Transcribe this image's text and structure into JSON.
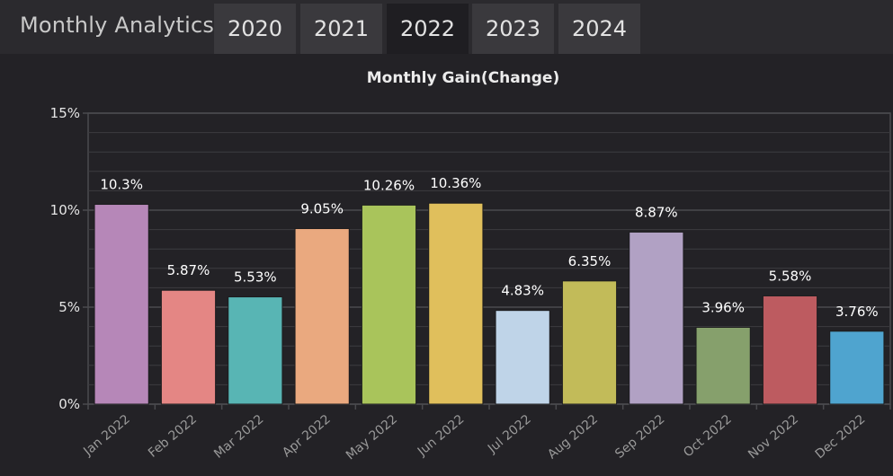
{
  "header": {
    "title": "Monthly Analytics",
    "tabs": [
      {
        "label": "2020",
        "active": false
      },
      {
        "label": "2021",
        "active": false
      },
      {
        "label": "2022",
        "active": true
      },
      {
        "label": "2023",
        "active": false
      },
      {
        "label": "2024",
        "active": false
      }
    ]
  },
  "chart_data": {
    "type": "bar",
    "title": "Monthly Gain(Change)",
    "xlabel": "",
    "ylabel": "",
    "categories": [
      "Jan 2022",
      "Feb 2022",
      "Mar 2022",
      "Apr 2022",
      "May 2022",
      "Jun 2022",
      "Jul 2022",
      "Aug 2022",
      "Sep 2022",
      "Oct 2022",
      "Nov 2022",
      "Dec 2022"
    ],
    "values": [
      10.3,
      5.87,
      5.53,
      9.05,
      10.26,
      10.36,
      4.83,
      6.35,
      8.87,
      3.96,
      5.58,
      3.76
    ],
    "data_labels": [
      "10.3%",
      "5.87%",
      "5.53%",
      "9.05%",
      "10.26%",
      "10.36%",
      "4.83%",
      "6.35%",
      "8.87%",
      "3.96%",
      "5.58%",
      "3.76%"
    ],
    "ylim": [
      0,
      15
    ],
    "yticks": [
      {
        "value": 0,
        "label": "0%"
      },
      {
        "value": 5,
        "label": "5%"
      },
      {
        "value": 10,
        "label": "10%"
      },
      {
        "value": 15,
        "label": "15%"
      }
    ],
    "grid": true,
    "legend": "none",
    "colors": [
      "#b687b8",
      "#e48684",
      "#58b5b4",
      "#eaa97f",
      "#a9c45b",
      "#e0bf5c",
      "#bfd4e8",
      "#c2bb59",
      "#b1a1c4",
      "#86a06c",
      "#bd5b60",
      "#4fa4cf"
    ],
    "grid_color": "#3d3c40",
    "axis_color": "#4a4a4e"
  }
}
